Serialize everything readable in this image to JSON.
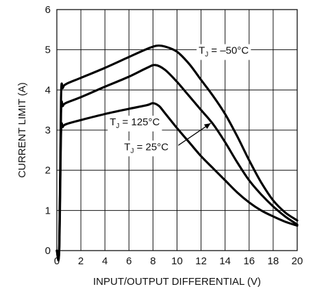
{
  "chart_data": {
    "type": "line",
    "xlabel": "INPUT/OUTPUT DIFFERENTIAL (V)",
    "ylabel": "CURRENT LIMIT (A)",
    "xlim": [
      0,
      20
    ],
    "ylim": [
      0,
      6
    ],
    "xticks": [
      0,
      2,
      4,
      6,
      8,
      10,
      12,
      14,
      16,
      18,
      20
    ],
    "yticks": [
      0,
      1,
      2,
      3,
      4,
      5,
      6
    ],
    "grid": true,
    "series": [
      {
        "name": "TJ = –50°C",
        "points": [
          [
            0,
            0
          ],
          [
            0.2,
            0.05
          ],
          [
            0.35,
            3.8
          ],
          [
            0.5,
            4.05
          ],
          [
            0.8,
            4.15
          ],
          [
            2,
            4.3
          ],
          [
            4,
            4.55
          ],
          [
            6,
            4.82
          ],
          [
            7.5,
            5.02
          ],
          [
            8.3,
            5.1
          ],
          [
            9,
            5.08
          ],
          [
            10,
            4.95
          ],
          [
            11,
            4.65
          ],
          [
            12,
            4.25
          ],
          [
            13,
            3.85
          ],
          [
            14,
            3.4
          ],
          [
            15,
            2.85
          ],
          [
            16,
            2.25
          ],
          [
            17,
            1.7
          ],
          [
            18,
            1.25
          ],
          [
            19,
            0.95
          ],
          [
            20,
            0.75
          ]
        ]
      },
      {
        "name": "TJ = 25°C",
        "points": [
          [
            0,
            0
          ],
          [
            0.2,
            0.05
          ],
          [
            0.35,
            3.4
          ],
          [
            0.5,
            3.6
          ],
          [
            0.8,
            3.68
          ],
          [
            2,
            3.82
          ],
          [
            4,
            4.08
          ],
          [
            6,
            4.33
          ],
          [
            7.5,
            4.55
          ],
          [
            8.2,
            4.62
          ],
          [
            9,
            4.5
          ],
          [
            10,
            4.2
          ],
          [
            11,
            3.85
          ],
          [
            12,
            3.5
          ],
          [
            13,
            3.15
          ],
          [
            14,
            2.7
          ],
          [
            15,
            2.2
          ],
          [
            16,
            1.75
          ],
          [
            17,
            1.4
          ],
          [
            18,
            1.1
          ],
          [
            19,
            0.85
          ],
          [
            20,
            0.65
          ]
        ]
      },
      {
        "name": "TJ = 125°C",
        "points": [
          [
            0,
            0
          ],
          [
            0.2,
            0.05
          ],
          [
            0.35,
            2.9
          ],
          [
            0.5,
            3.08
          ],
          [
            0.8,
            3.15
          ],
          [
            2,
            3.25
          ],
          [
            4,
            3.4
          ],
          [
            6,
            3.53
          ],
          [
            7.5,
            3.62
          ],
          [
            8,
            3.67
          ],
          [
            8.5,
            3.6
          ],
          [
            9,
            3.42
          ],
          [
            10,
            3.05
          ],
          [
            11,
            2.7
          ],
          [
            12,
            2.35
          ],
          [
            13,
            2.05
          ],
          [
            14,
            1.75
          ],
          [
            15,
            1.45
          ],
          [
            16,
            1.2
          ],
          [
            17,
            1.0
          ],
          [
            18,
            0.85
          ],
          [
            19,
            0.72
          ],
          [
            20,
            0.62
          ]
        ]
      }
    ],
    "annotations": [
      {
        "main": "T",
        "sub": "J",
        "rest": " = –50°C",
        "x": 11.8,
        "y": 4.9
      },
      {
        "main": "T",
        "sub": "J",
        "rest": " = 125°C",
        "x": 4.4,
        "y": 3.12
      },
      {
        "main": "T",
        "sub": "J",
        "rest": " = 25°C",
        "x": 5.6,
        "y": 2.5
      }
    ],
    "arrow": {
      "from": [
        10.1,
        2.62
      ],
      "to": [
        12.8,
        3.17
      ]
    }
  }
}
